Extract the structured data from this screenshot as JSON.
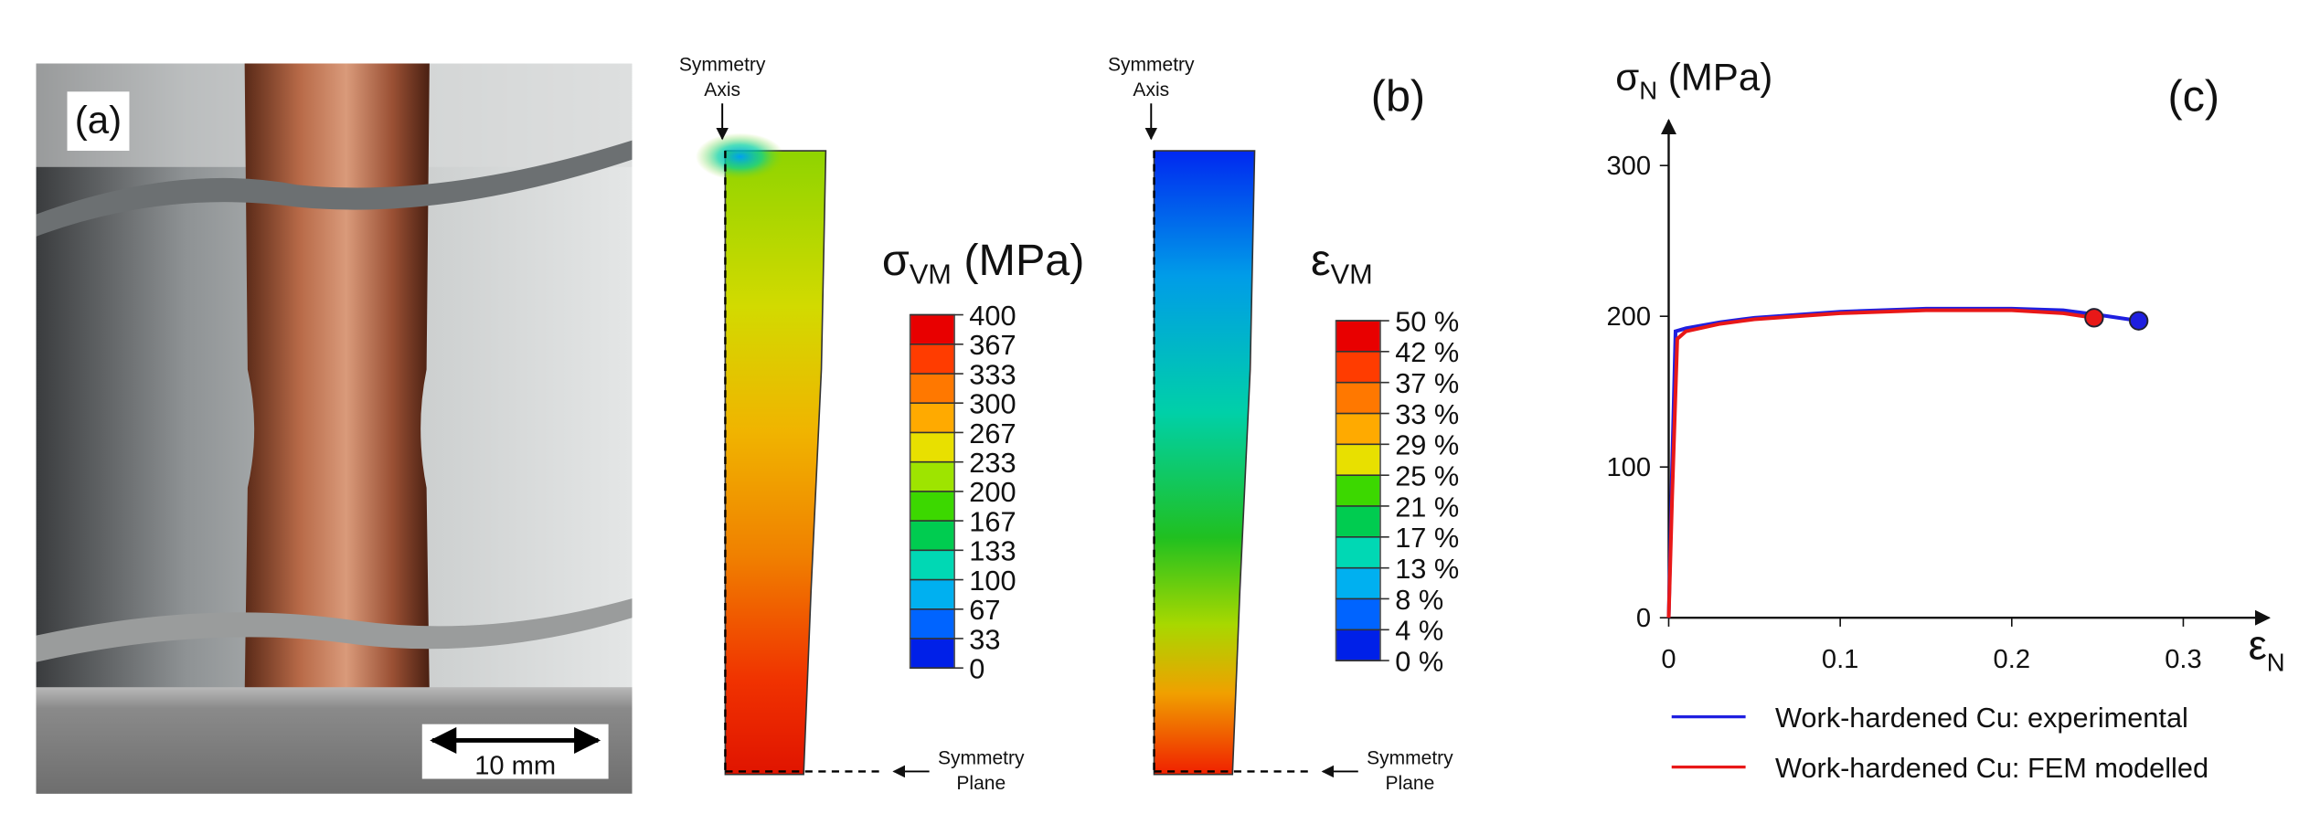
{
  "panel_a": {
    "label": "(a)",
    "scale_bar": "10 mm"
  },
  "panel_b": {
    "label": "(b)",
    "stress_plot": {
      "axis_label": [
        "Symmetry",
        "Axis"
      ],
      "plane_label": [
        "Symmetry",
        "Plane"
      ],
      "legend_symbol": "σ",
      "legend_subscript": "VM",
      "legend_unit": " (MPa)",
      "ticks": [
        400,
        367,
        333,
        300,
        267,
        233,
        200,
        167,
        133,
        100,
        67,
        33,
        0
      ]
    },
    "strain_plot": {
      "axis_label": [
        "Symmetry",
        "Axis"
      ],
      "plane_label": [
        "Symmetry",
        "Plane"
      ],
      "legend_symbol": "ε",
      "legend_subscript": "VM",
      "ticks": [
        {
          "value": 50,
          "label": "50 %"
        },
        {
          "value": 42,
          "label": "42 %"
        },
        {
          "value": 37,
          "label": "37 %"
        },
        {
          "value": 33,
          "label": "33 %"
        },
        {
          "value": 29,
          "label": "29 %"
        },
        {
          "value": 25,
          "label": "25 %"
        },
        {
          "value": 21,
          "label": "21 %"
        },
        {
          "value": 17,
          "label": "17 %"
        },
        {
          "value": 13,
          "label": "13 %"
        },
        {
          "value": 8,
          "label": "8 %"
        },
        {
          "value": 4,
          "label": "4 %"
        },
        {
          "value": 0,
          "label": "0 %"
        }
      ]
    }
  },
  "chart_data": {
    "type": "line",
    "label": "(c)",
    "ylabel_symbol": "σ",
    "ylabel_subscript": "N",
    "ylabel_unit": " (MPa)",
    "xlabel_symbol": "ε",
    "xlabel_subscript": "N",
    "xlim": [
      0,
      0.35
    ],
    "ylim": [
      0,
      330
    ],
    "xticks": [
      0,
      0.1,
      0.2,
      0.3
    ],
    "yticks": [
      0,
      100,
      200,
      300
    ],
    "grid": false,
    "legend": "bottom",
    "end_marker": true,
    "series": [
      {
        "name": "Work-hardened Cu: experimental",
        "color": "#1f1fe0",
        "x": [
          0,
          0.002,
          0.004,
          0.01,
          0.03,
          0.05,
          0.1,
          0.15,
          0.2,
          0.23,
          0.25,
          0.274
        ],
        "values": [
          0,
          100,
          190,
          192,
          196,
          199,
          203,
          205,
          205,
          204,
          201,
          197
        ]
      },
      {
        "name": "Work-hardened Cu: FEM modelled",
        "color": "#e81818",
        "x": [
          0,
          0.002,
          0.005,
          0.01,
          0.03,
          0.05,
          0.1,
          0.15,
          0.2,
          0.23,
          0.248
        ],
        "values": [
          0,
          80,
          185,
          190,
          195,
          198,
          202,
          204,
          204,
          202,
          199
        ]
      }
    ]
  }
}
